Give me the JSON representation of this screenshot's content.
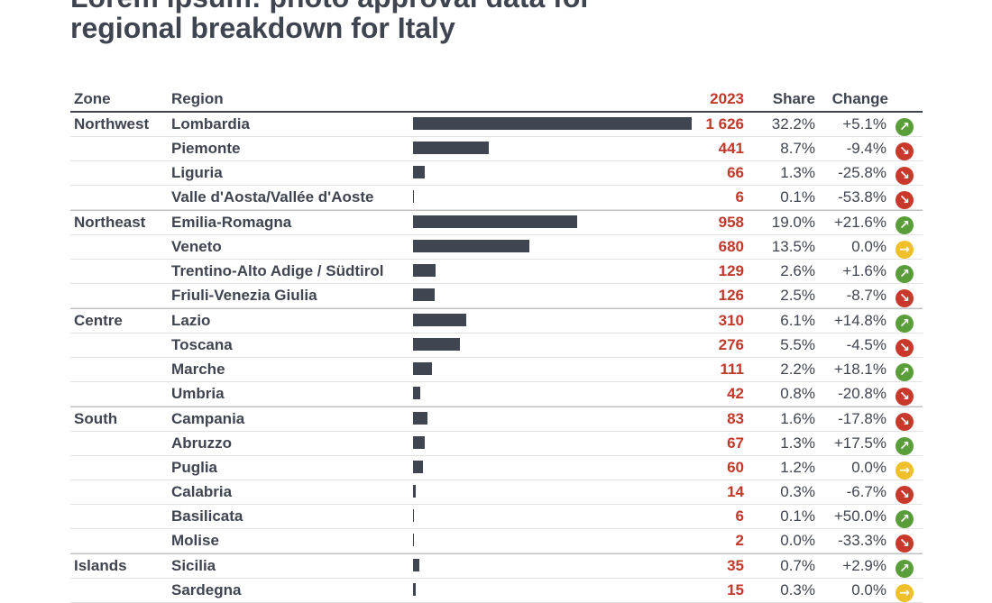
{
  "title_line1": "Lorem ipsum: photo approval data for",
  "title_line2": "regional breakdown for Italy",
  "headers": {
    "zone": "Zone",
    "region": "Region",
    "value": "2023",
    "share": "Share",
    "change": "Change"
  },
  "colors": {
    "value_text": "#c0392b",
    "bar": "#3f4652",
    "up": "#5a9e3a",
    "down": "#c8392b",
    "flat": "#f0c02a"
  },
  "chart_data": {
    "type": "table",
    "bar_max": 1626,
    "rows": [
      {
        "zone": "Northwest",
        "region": "Lombardia",
        "value": 1626,
        "value_label": "1 626",
        "share": "32.2%",
        "change": "+5.1%",
        "trend": "up"
      },
      {
        "zone": "",
        "region": "Piemonte",
        "value": 441,
        "value_label": "441",
        "share": "8.7%",
        "change": "-9.4%",
        "trend": "down"
      },
      {
        "zone": "",
        "region": "Liguria",
        "value": 66,
        "value_label": "66",
        "share": "1.3%",
        "change": "-25.8%",
        "trend": "down"
      },
      {
        "zone": "",
        "region": "Valle d'Aosta/Vallée d'Aoste",
        "value": 6,
        "value_label": "6",
        "share": "0.1%",
        "change": "-53.8%",
        "trend": "down"
      },
      {
        "zone": "Northeast",
        "region": "Emilia-Romagna",
        "value": 958,
        "value_label": "958",
        "share": "19.0%",
        "change": "+21.6%",
        "trend": "up"
      },
      {
        "zone": "",
        "region": "Veneto",
        "value": 680,
        "value_label": "680",
        "share": "13.5%",
        "change": "0.0%",
        "trend": "flat"
      },
      {
        "zone": "",
        "region": "Trentino-Alto Adige / Südtirol",
        "value": 129,
        "value_label": "129",
        "share": "2.6%",
        "change": "+1.6%",
        "trend": "up"
      },
      {
        "zone": "",
        "region": "Friuli-Venezia Giulia",
        "value": 126,
        "value_label": "126",
        "share": "2.5%",
        "change": "-8.7%",
        "trend": "down"
      },
      {
        "zone": "Centre",
        "region": "Lazio",
        "value": 310,
        "value_label": "310",
        "share": "6.1%",
        "change": "+14.8%",
        "trend": "up"
      },
      {
        "zone": "",
        "region": "Toscana",
        "value": 276,
        "value_label": "276",
        "share": "5.5%",
        "change": "-4.5%",
        "trend": "down"
      },
      {
        "zone": "",
        "region": "Marche",
        "value": 111,
        "value_label": "111",
        "share": "2.2%",
        "change": "+18.1%",
        "trend": "up"
      },
      {
        "zone": "",
        "region": "Umbria",
        "value": 42,
        "value_label": "42",
        "share": "0.8%",
        "change": "-20.8%",
        "trend": "down"
      },
      {
        "zone": "South",
        "region": "Campania",
        "value": 83,
        "value_label": "83",
        "share": "1.6%",
        "change": "-17.8%",
        "trend": "down"
      },
      {
        "zone": "",
        "region": "Abruzzo",
        "value": 67,
        "value_label": "67",
        "share": "1.3%",
        "change": "+17.5%",
        "trend": "up"
      },
      {
        "zone": "",
        "region": "Puglia",
        "value": 60,
        "value_label": "60",
        "share": "1.2%",
        "change": "0.0%",
        "trend": "flat"
      },
      {
        "zone": "",
        "region": "Calabria",
        "value": 14,
        "value_label": "14",
        "share": "0.3%",
        "change": "-6.7%",
        "trend": "down"
      },
      {
        "zone": "",
        "region": "Basilicata",
        "value": 6,
        "value_label": "6",
        "share": "0.1%",
        "change": "+50.0%",
        "trend": "up"
      },
      {
        "zone": "",
        "region": "Molise",
        "value": 2,
        "value_label": "2",
        "share": "0.0%",
        "change": "-33.3%",
        "trend": "down"
      },
      {
        "zone": "Islands",
        "region": "Sicilia",
        "value": 35,
        "value_label": "35",
        "share": "0.7%",
        "change": "+2.9%",
        "trend": "up"
      },
      {
        "zone": "",
        "region": "Sardegna",
        "value": 15,
        "value_label": "15",
        "share": "0.3%",
        "change": "0.0%",
        "trend": "flat"
      }
    ]
  }
}
